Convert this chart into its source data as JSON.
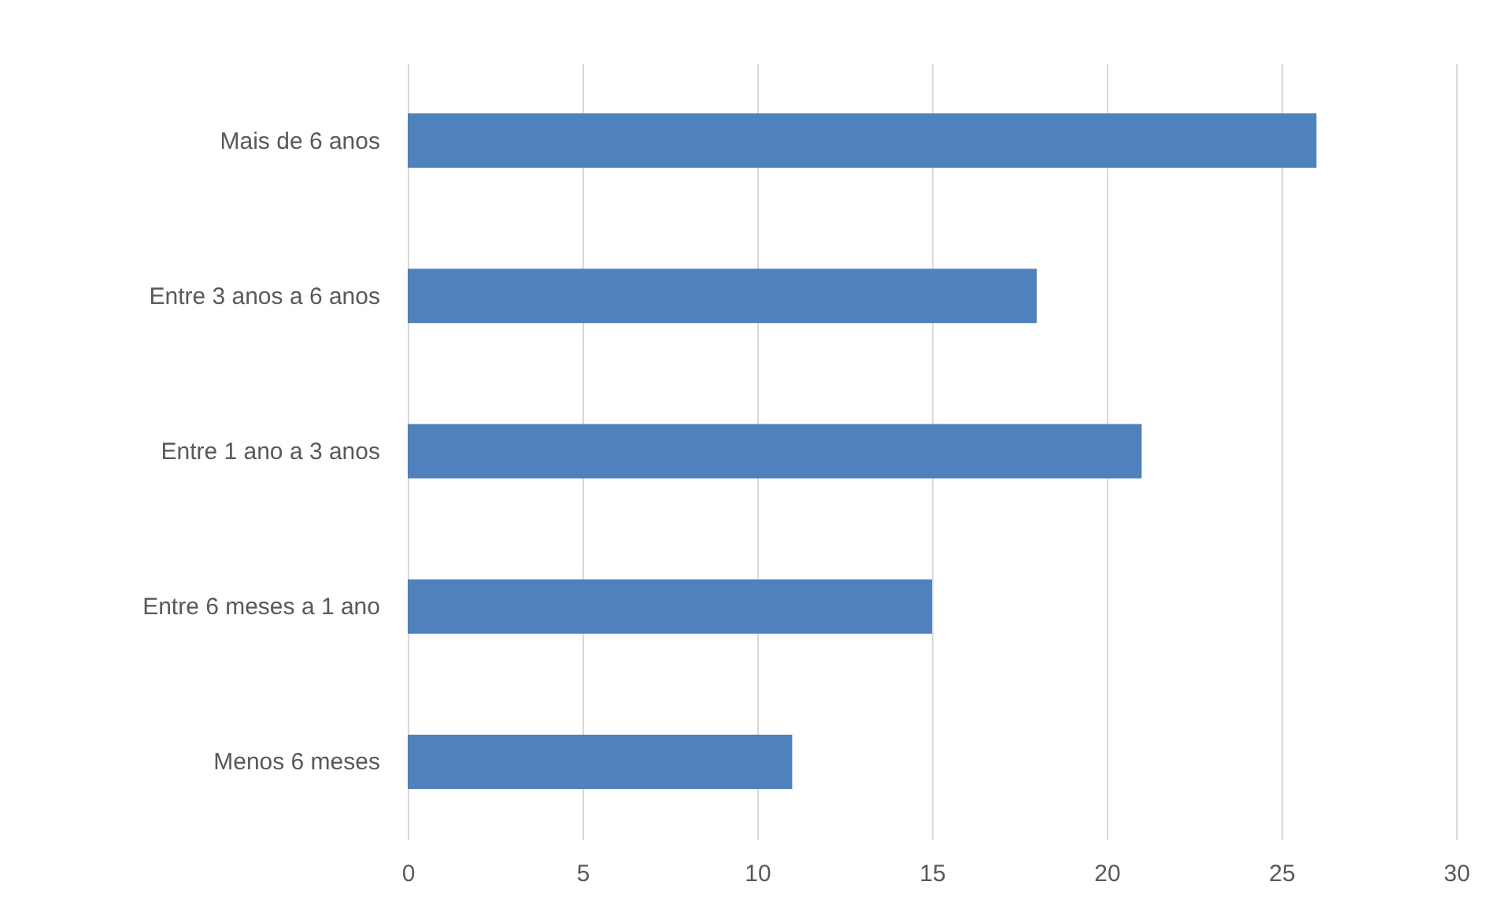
{
  "chart_data": {
    "type": "bar",
    "orientation": "horizontal",
    "categories": [
      "Mais de 6 anos",
      "Entre 3 anos a 6 anos",
      "Entre 1 ano a 3 anos",
      "Entre 6 meses a 1 ano",
      "Menos 6 meses"
    ],
    "values": [
      26,
      18,
      21,
      15,
      11
    ],
    "color": "#4f81bd",
    "xlim": [
      0,
      30
    ],
    "xticks": [
      0,
      5,
      10,
      15,
      20,
      25,
      30
    ],
    "grid": "x"
  }
}
